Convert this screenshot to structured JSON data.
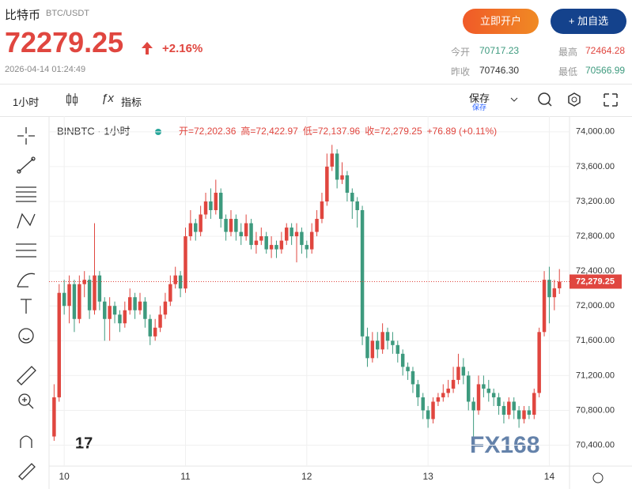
{
  "header": {
    "name": "比特币",
    "symbol": "BTC/USDT",
    "price": "72279.25",
    "change": "+2.16%",
    "time": "2026-04-14 01:24:49",
    "open_account": "立即开户",
    "add_watch": "+ 加自选",
    "stats": [
      {
        "label": "今开",
        "value": "70717.23"
      },
      {
        "label": "最高",
        "value": "72464.28"
      },
      {
        "label": "昨收",
        "value": "70746.30"
      },
      {
        "label": "最低",
        "value": "70566.99"
      }
    ]
  },
  "toolbar": {
    "interval": "1小时",
    "indicators": "指标",
    "save": "保存",
    "save_sub": "保存"
  },
  "watermark": "FX168",
  "chart_data": {
    "type": "candlestick",
    "title": "BINBTC · 1小时",
    "ohlc_header": [
      "开=72,202.36",
      "高=72,422.97",
      "低=72,137.96",
      "收=72,279.25",
      "+76.89 (+0.11%)"
    ],
    "up_color": "#e0463f",
    "down_color": "#3d9a7e",
    "current_price": {
      "value": 72279.25,
      "label": "72,279.25"
    },
    "ylim": [
      70160,
      74180
    ],
    "yticks": [
      {
        "value": 70400,
        "label": "70,400.00"
      },
      {
        "value": 70800,
        "label": "70,800.00"
      },
      {
        "value": 71200,
        "label": "71,200.00"
      },
      {
        "value": 71600,
        "label": "71,600.00"
      },
      {
        "value": 72000,
        "label": "72,000.00"
      },
      {
        "value": 72400,
        "label": "72,400.00"
      },
      {
        "value": 72800,
        "label": "72,800.00"
      },
      {
        "value": 73200,
        "label": "73,200.00"
      },
      {
        "value": 73600,
        "label": "73,600.00"
      },
      {
        "value": 74000,
        "label": "74,000.00"
      }
    ],
    "xlim": [
      -1,
      102
    ],
    "xticks": [
      {
        "value": 2,
        "label": "10"
      },
      {
        "value": 26,
        "label": "11"
      },
      {
        "value": 50,
        "label": "12"
      },
      {
        "value": 74,
        "label": "13"
      },
      {
        "value": 98,
        "label": "14"
      }
    ],
    "open": [
      70500,
      70950,
      72150,
      72000,
      72250,
      71850,
      72250,
      72300,
      71950,
      72350,
      72050,
      71850,
      72000,
      71900,
      71800,
      71950,
      72100,
      71950,
      72050,
      71850,
      71650,
      71750,
      71900,
      72050,
      72250,
      72350,
      72200,
      72800,
      72950,
      72850,
      73050,
      73200,
      73100,
      73300,
      73000,
      72850,
      73000,
      72850,
      72800,
      72950,
      72700,
      72750,
      72800,
      72650,
      72700,
      72650,
      72750,
      72900,
      72800,
      72850,
      72700,
      72650,
      72850,
      73000,
      73200,
      73600,
      73750,
      73450,
      73500,
      73300,
      73200,
      73100,
      71650,
      71400,
      71600,
      71500,
      71700,
      71600,
      71550,
      71450,
      71300,
      71250,
      71100,
      70950,
      70800,
      70700,
      70900,
      70950,
      71000,
      71050,
      71150,
      71300,
      71200,
      70900,
      70800,
      71100,
      71050,
      71000,
      70950,
      70850,
      70750,
      70900,
      70800,
      70700,
      70800,
      70750,
      71000,
      71700,
      72300,
      72100,
      72202.36
    ],
    "high": [
      71100,
      72250,
      72300,
      72350,
      72300,
      72350,
      72400,
      72350,
      72950,
      72400,
      72100,
      72100,
      72050,
      71950,
      72050,
      72200,
      72150,
      72150,
      72100,
      71900,
      71850,
      72000,
      72150,
      72350,
      72450,
      72400,
      72900,
      73100,
      73000,
      73150,
      73300,
      73350,
      73450,
      73350,
      73050,
      73100,
      73050,
      72950,
      73050,
      73000,
      72850,
      72900,
      72850,
      72800,
      72750,
      72850,
      72950,
      72950,
      72950,
      72900,
      72750,
      72950,
      73100,
      73300,
      73750,
      73850,
      73800,
      73650,
      73550,
      73350,
      73250,
      73150,
      71750,
      71700,
      71700,
      71800,
      71750,
      71700,
      71600,
      71500,
      71350,
      71300,
      71150,
      71000,
      70850,
      70950,
      71000,
      71100,
      71150,
      71300,
      71450,
      71400,
      71250,
      70950,
      71200,
      71200,
      71150,
      71050,
      71000,
      70900,
      70950,
      70950,
      70850,
      70850,
      70850,
      71050,
      71750,
      72400,
      72450,
      72300,
      72422.97
    ],
    "low": [
      70450,
      70900,
      71900,
      71800,
      71700,
      71800,
      72100,
      71850,
      71900,
      71950,
      71600,
      71600,
      71800,
      71700,
      71750,
      71900,
      71850,
      71900,
      71750,
      71550,
      71600,
      71700,
      71850,
      72000,
      72200,
      72100,
      72150,
      72750,
      72750,
      72800,
      73000,
      73000,
      73050,
      72900,
      72750,
      72800,
      72750,
      72700,
      72750,
      72650,
      72600,
      72700,
      72600,
      72550,
      72550,
      72600,
      72700,
      72700,
      72500,
      72600,
      72550,
      72600,
      72800,
      72950,
      73150,
      73550,
      73350,
      73400,
      73200,
      73000,
      72900,
      71550,
      71300,
      71350,
      71400,
      71450,
      71500,
      71450,
      71350,
      71200,
      71150,
      71000,
      70850,
      70700,
      70600,
      70650,
      70850,
      70900,
      70950,
      71000,
      71100,
      71100,
      70800,
      70500,
      70750,
      70950,
      70900,
      70850,
      70750,
      70650,
      70700,
      70700,
      70600,
      70650,
      70700,
      70700,
      70950,
      71650,
      71800,
      71950,
      72137.96
    ],
    "close": [
      70950,
      72150,
      72000,
      72250,
      71850,
      72250,
      72300,
      71950,
      72350,
      72050,
      71850,
      72000,
      71900,
      71800,
      71950,
      72100,
      71950,
      72050,
      71850,
      71650,
      71750,
      71900,
      72050,
      72250,
      72350,
      72200,
      72800,
      72950,
      72850,
      73050,
      73200,
      73100,
      73300,
      73000,
      72850,
      73000,
      72850,
      72800,
      72950,
      72700,
      72750,
      72800,
      72650,
      72700,
      72650,
      72750,
      72900,
      72800,
      72850,
      72700,
      72650,
      72850,
      73000,
      73200,
      73600,
      73750,
      73450,
      73500,
      73300,
      73200,
      73100,
      71650,
      71400,
      71600,
      71500,
      71700,
      71600,
      71550,
      71450,
      71300,
      71250,
      71100,
      70950,
      70800,
      70700,
      70900,
      70950,
      71000,
      71050,
      71150,
      71300,
      71200,
      70900,
      70800,
      71100,
      71050,
      71000,
      70950,
      70850,
      70750,
      70900,
      70800,
      70700,
      70800,
      70750,
      71000,
      71700,
      72300,
      72100,
      72202.36,
      72279.25
    ]
  }
}
